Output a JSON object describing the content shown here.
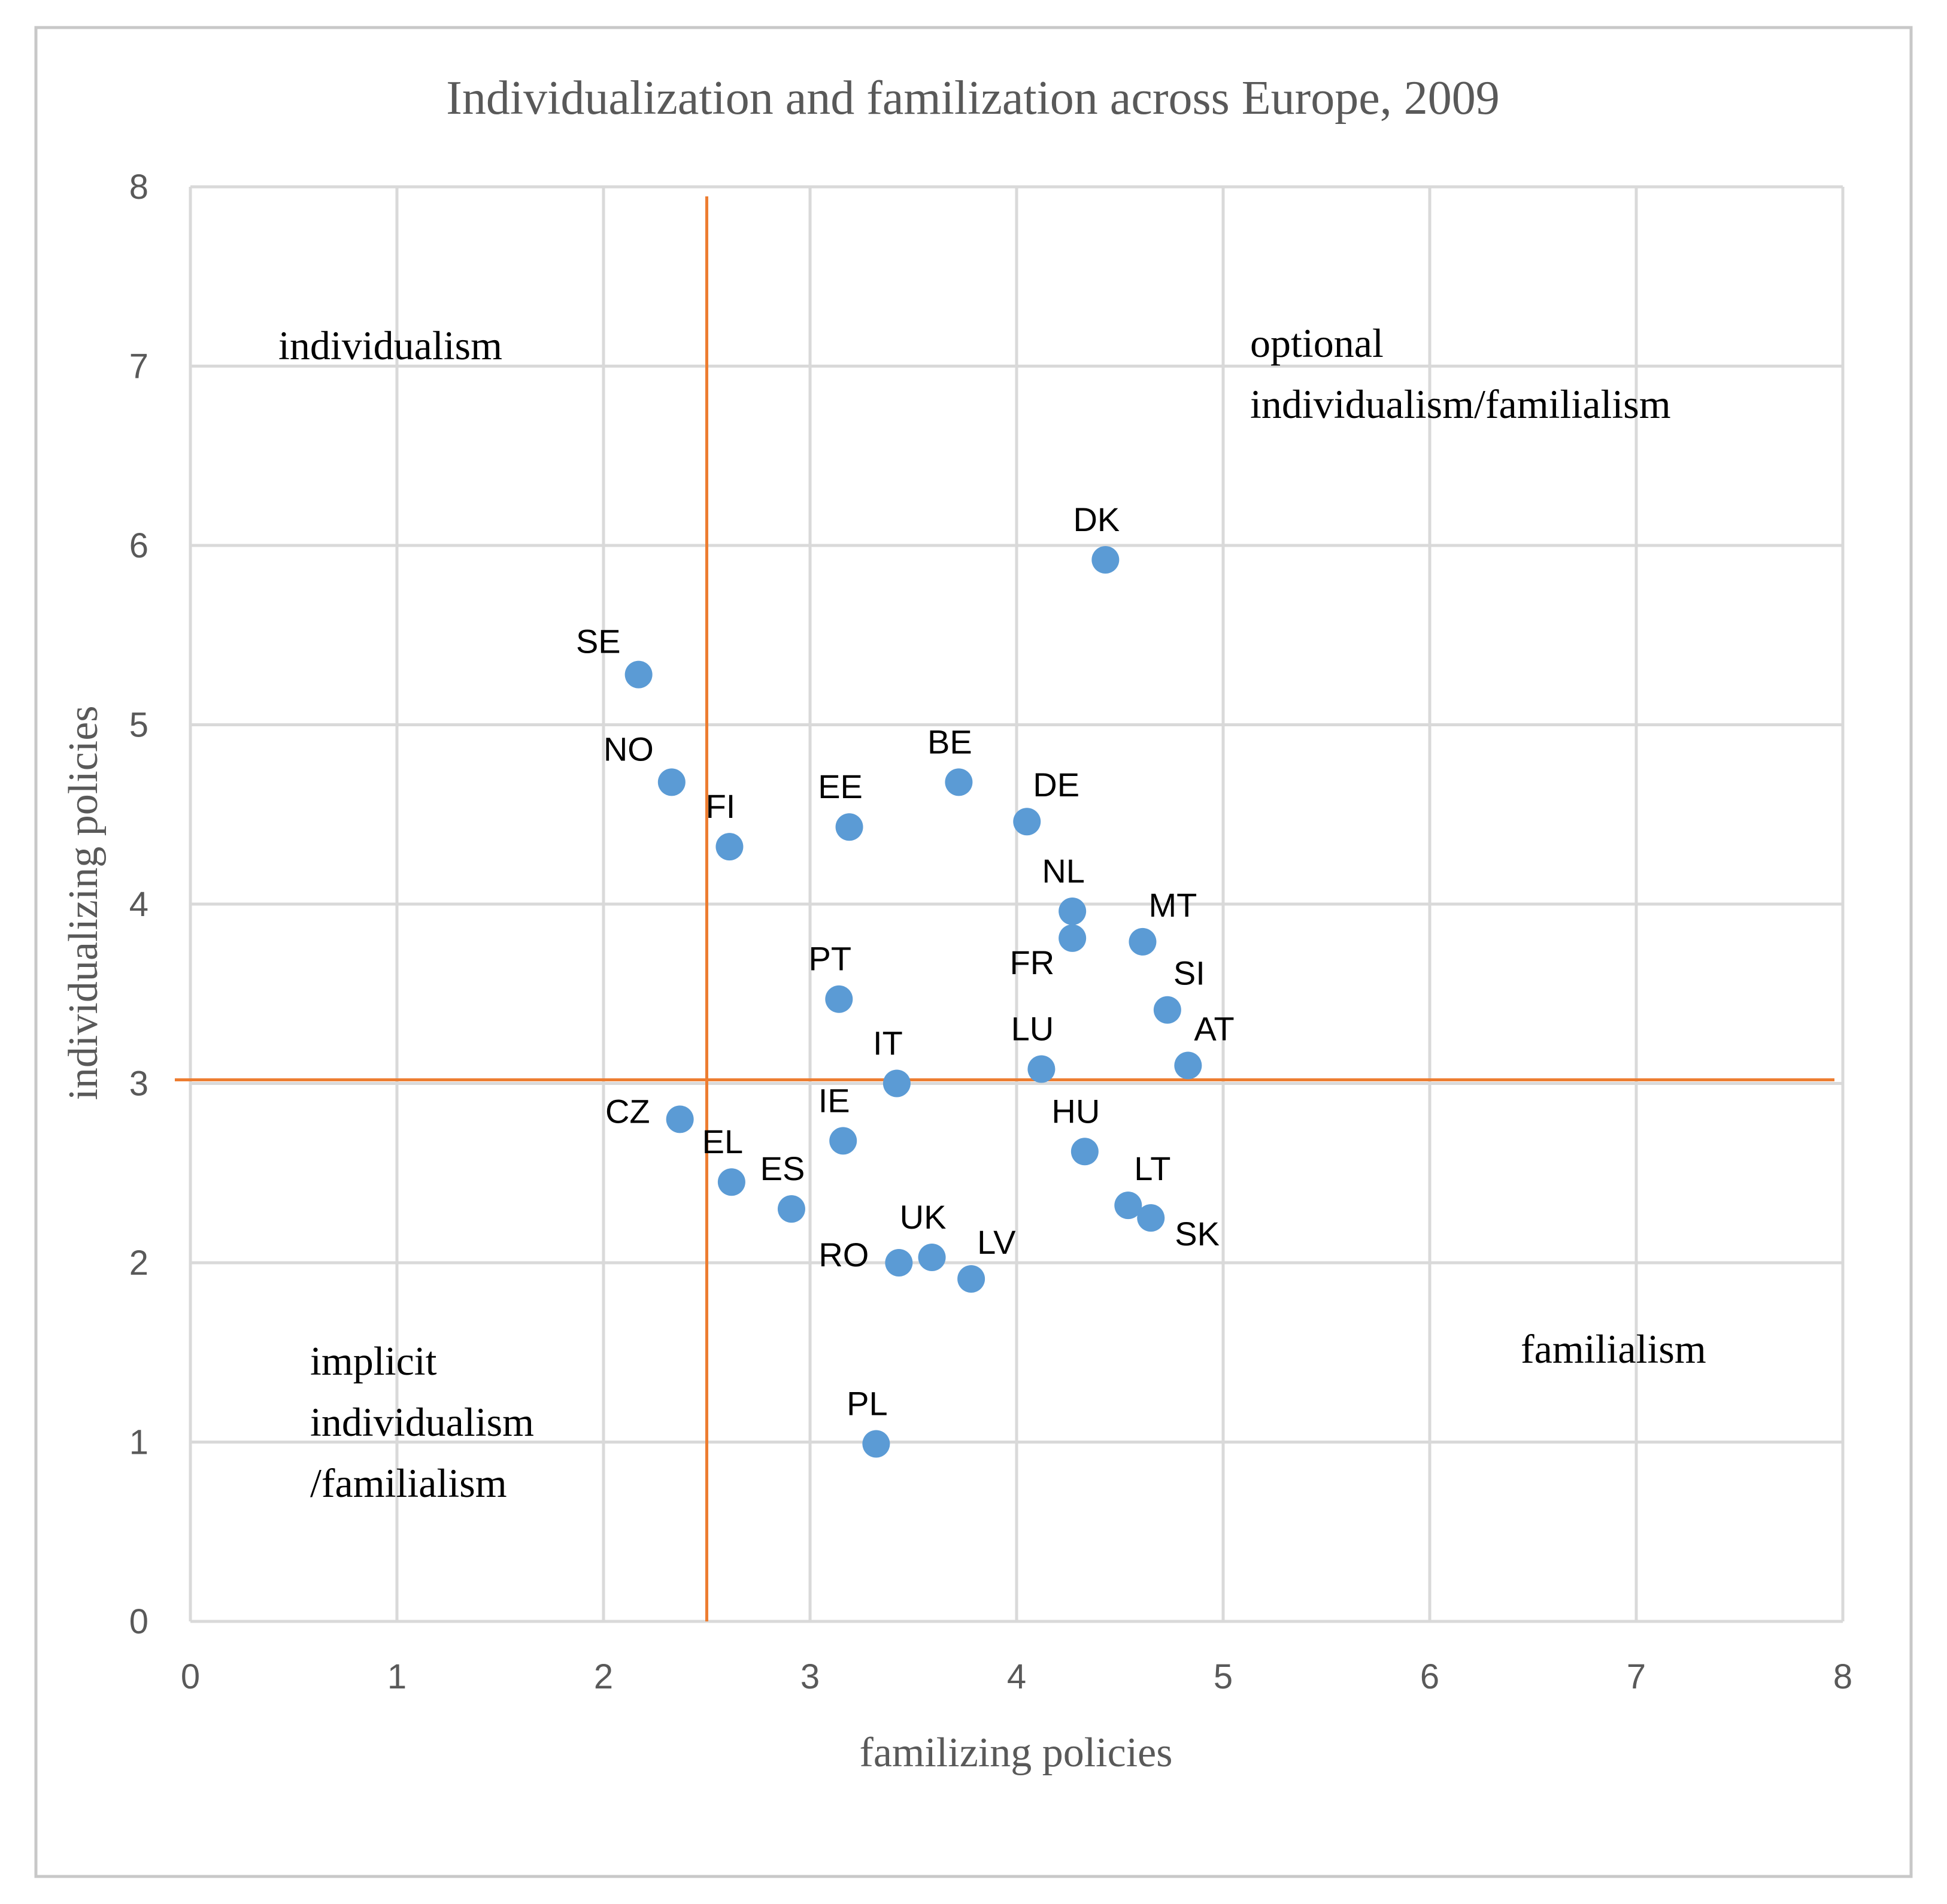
{
  "colors": {
    "point": "#5b9bd5",
    "divider": "#ed7d31",
    "grid": "#d9d9d9",
    "frame": "#c8c8c8",
    "title": "#595959",
    "tick": "#595959",
    "point_label": "#000000",
    "quadrant_label": "#000000"
  },
  "chart_data": {
    "type": "scatter",
    "title": "Individualization and familization across Europe, 2009",
    "xlabel": "familizing policies",
    "ylabel": "individualizing policies",
    "xlim": [
      0,
      8
    ],
    "ylim": [
      0,
      8
    ],
    "xticks": [
      0,
      1,
      2,
      3,
      4,
      5,
      6,
      7,
      8
    ],
    "yticks": [
      0,
      1,
      2,
      3,
      4,
      5,
      6,
      7,
      8
    ],
    "grid": true,
    "divider_lines": {
      "x": 2.5,
      "y": 3.02
    },
    "quadrant_labels": {
      "top_left": [
        "individualism"
      ],
      "top_right": [
        "optional",
        "individualism/familialism"
      ],
      "bottom_left": [
        "implicit",
        "individualism",
        "/familialism"
      ],
      "bottom_right": [
        "familialism"
      ]
    },
    "points": [
      {
        "label": "DK",
        "x": 4.43,
        "y": 5.92,
        "pos": "above"
      },
      {
        "label": "SE",
        "x": 2.17,
        "y": 5.28,
        "pos": "above-left"
      },
      {
        "label": "NO",
        "x": 2.33,
        "y": 4.68,
        "pos": "above-left"
      },
      {
        "label": "FI",
        "x": 2.61,
        "y": 4.32,
        "pos": "above"
      },
      {
        "label": "EE",
        "x": 3.19,
        "y": 4.43,
        "pos": "above"
      },
      {
        "label": "BE",
        "x": 3.72,
        "y": 4.68,
        "pos": "above"
      },
      {
        "label": "DE",
        "x": 4.05,
        "y": 4.46,
        "pos": "above-right"
      },
      {
        "label": "NL",
        "x": 4.27,
        "y": 3.96,
        "pos": "above"
      },
      {
        "label": "FR",
        "x": 4.27,
        "y": 3.81,
        "pos": "below-left"
      },
      {
        "label": "MT",
        "x": 4.61,
        "y": 3.79,
        "pos": "above-right"
      },
      {
        "label": "SI",
        "x": 4.73,
        "y": 3.41,
        "pos": "above-right"
      },
      {
        "label": "PT",
        "x": 3.14,
        "y": 3.47,
        "pos": "above"
      },
      {
        "label": "LU",
        "x": 4.12,
        "y": 3.08,
        "pos": "above"
      },
      {
        "label": "AT",
        "x": 4.83,
        "y": 3.1,
        "pos": "above-right"
      },
      {
        "label": "IT",
        "x": 3.42,
        "y": 3.0,
        "pos": "above"
      },
      {
        "label": "CZ",
        "x": 2.37,
        "y": 2.8,
        "pos": "left"
      },
      {
        "label": "IE",
        "x": 3.16,
        "y": 2.68,
        "pos": "above"
      },
      {
        "label": "HU",
        "x": 4.33,
        "y": 2.62,
        "pos": "above"
      },
      {
        "label": "EL",
        "x": 2.62,
        "y": 2.45,
        "pos": "above"
      },
      {
        "label": "ES",
        "x": 2.91,
        "y": 2.3,
        "pos": "above"
      },
      {
        "label": "LT",
        "x": 4.54,
        "y": 2.32,
        "pos": "above-right"
      },
      {
        "label": "SK",
        "x": 4.65,
        "y": 2.25,
        "pos": "below-right"
      },
      {
        "label": "UK",
        "x": 3.59,
        "y": 2.03,
        "pos": "above"
      },
      {
        "label": "RO",
        "x": 3.43,
        "y": 2.0,
        "pos": "left"
      },
      {
        "label": "LV",
        "x": 3.78,
        "y": 1.91,
        "pos": "above-right"
      },
      {
        "label": "PL",
        "x": 3.32,
        "y": 0.99,
        "pos": "above"
      }
    ]
  }
}
